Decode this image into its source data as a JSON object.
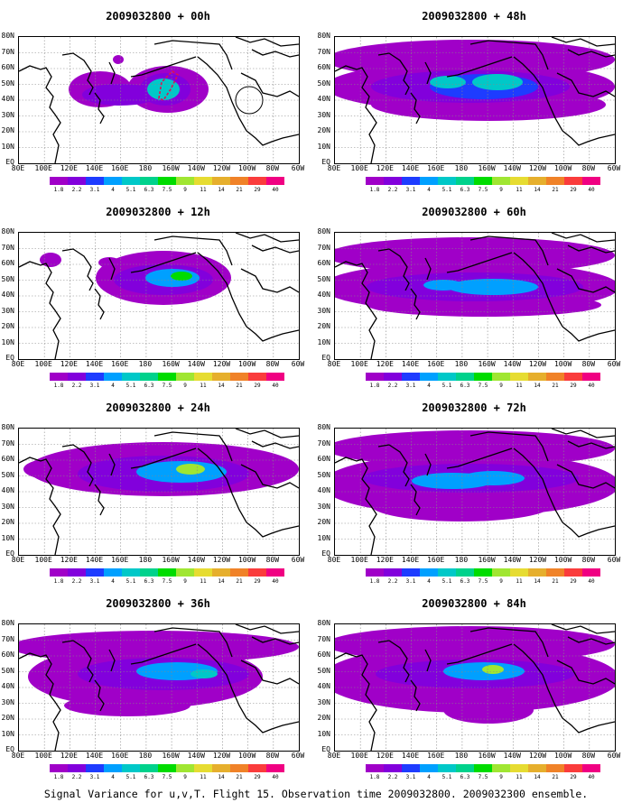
{
  "figure": {
    "caption": "Signal Variance for u,v,T. Flight 15. Observation time 2009032800. 2009032300 ensemble.",
    "lat_labels": [
      "80N",
      "70N",
      "60N",
      "50N",
      "40N",
      "30N",
      "20N",
      "10N",
      "EQ"
    ],
    "lon_labels": [
      "80E",
      "100E",
      "120E",
      "140E",
      "160E",
      "180",
      "160W",
      "140W",
      "120W",
      "100W",
      "80W",
      "60W"
    ],
    "colorbar": {
      "labels": [
        "1.8",
        "2.2",
        "3.1",
        "4",
        "5.1",
        "6.3",
        "7.5",
        "9",
        "11",
        "14",
        "21",
        "29",
        "40"
      ],
      "colors": [
        "#a000c8",
        "#8200dc",
        "#1e3cff",
        "#00a0ff",
        "#00c8c8",
        "#00d28c",
        "#00dc00",
        "#a0e632",
        "#e6dc32",
        "#e6af2d",
        "#f08228",
        "#fa3c3c",
        "#f00082"
      ]
    },
    "panels": [
      {
        "title": "2009032800 + 00h",
        "hour": 0
      },
      {
        "title": "2009032800 + 48h",
        "hour": 48
      },
      {
        "title": "2009032800 + 12h",
        "hour": 12
      },
      {
        "title": "2009032800 + 60h",
        "hour": 60
      },
      {
        "title": "2009032800 + 24h",
        "hour": 24
      },
      {
        "title": "2009032800 + 72h",
        "hour": 72
      },
      {
        "title": "2009032800 + 36h",
        "hour": 36
      },
      {
        "title": "2009032800 + 84h",
        "hour": 84
      }
    ]
  }
}
